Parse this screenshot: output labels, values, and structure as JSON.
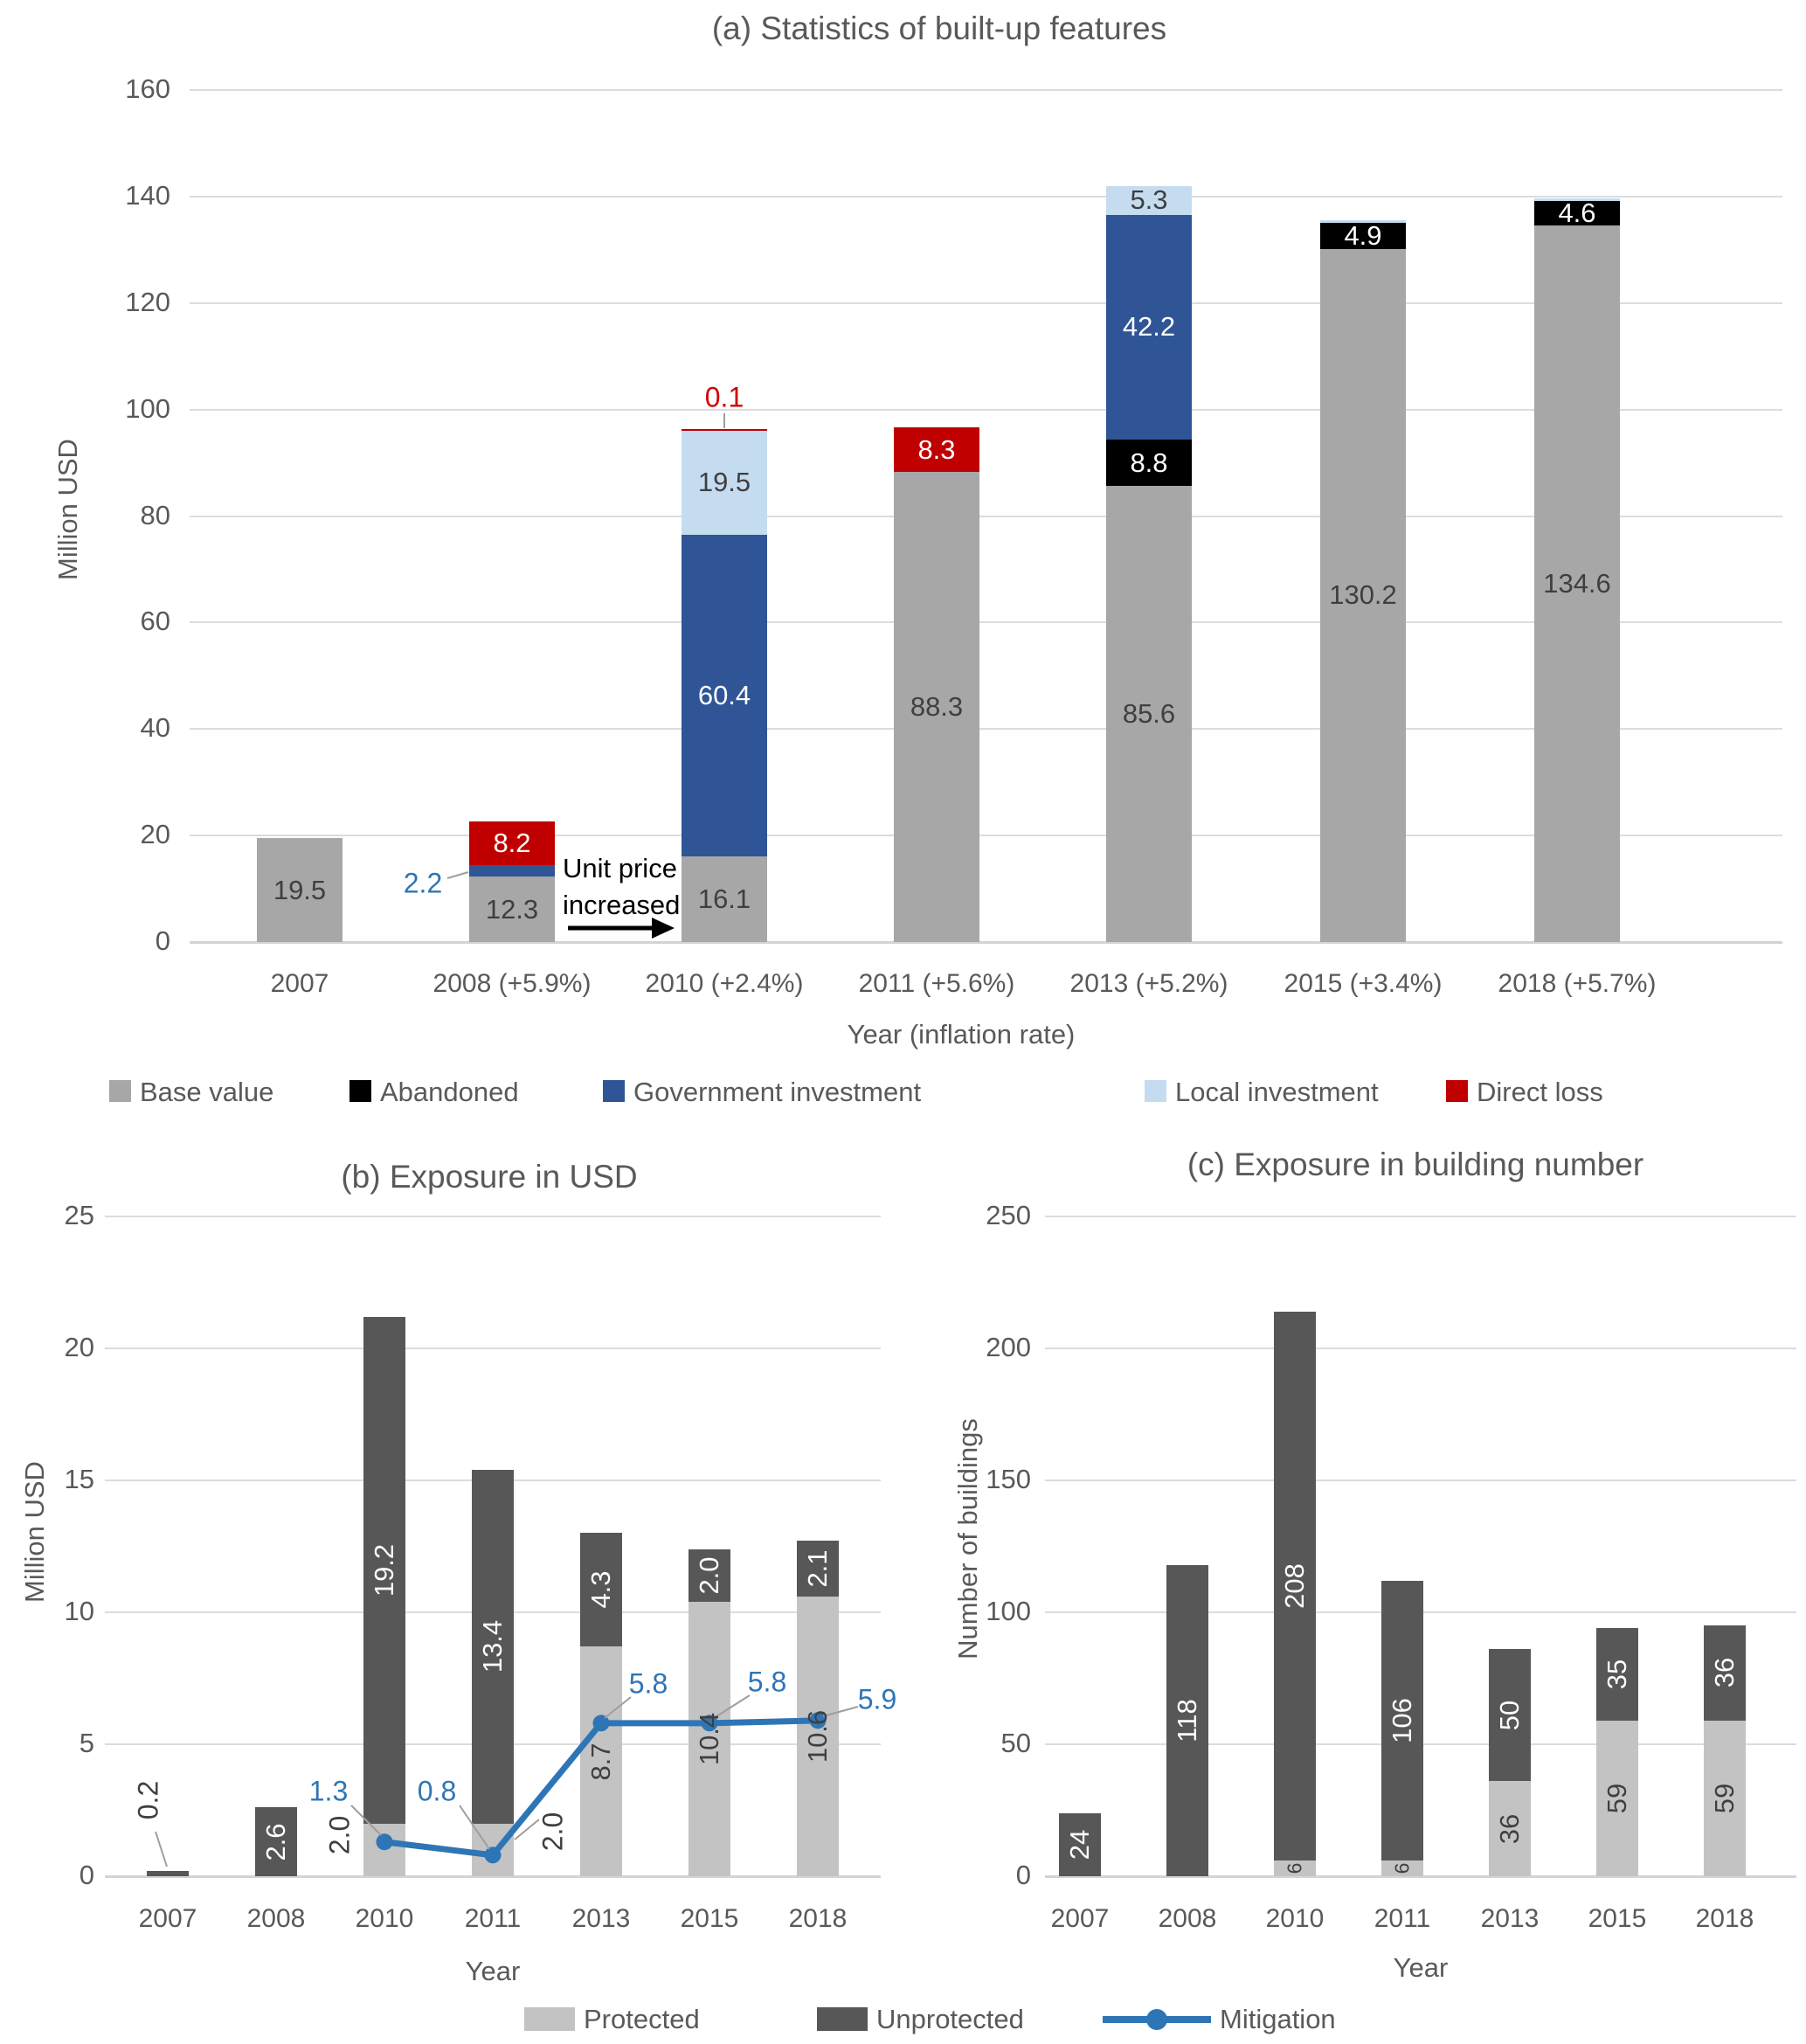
{
  "figure": {
    "background": "#FFFFFF"
  },
  "palette": {
    "base_value": "#A7A7A7",
    "abandoned": "#000000",
    "government_investment": "#2F5597",
    "local_investment": "#C5DCF0",
    "direct_loss": "#C00000",
    "protected": "#C3C3C3",
    "unprotected": "#575757",
    "mitigation": "#2E75B6",
    "text_gray": "#595959",
    "label_dark": "#3F3F3F",
    "label_white": "#FFFFFF",
    "callout_blue": "#2E75B6",
    "callout_red": "#D00000",
    "grid": "#DCDCDC",
    "leader": "#9E9E9E",
    "annotation_text": "#000000"
  },
  "chart_data": [
    {
      "id": "a",
      "type": "bar",
      "stacked": true,
      "title": "(a) Statistics of built-up features",
      "xlabel": "Year (inflation rate)",
      "ylabel": "Million USD",
      "ylim": [
        0,
        160
      ],
      "yticks": [
        0,
        20,
        40,
        60,
        80,
        100,
        120,
        140,
        160
      ],
      "grid": true,
      "legend_position": "bottom",
      "categories": [
        "2007",
        "2008 (+5.9%)",
        "2010 (+2.4%)",
        "2011 (+5.6%)",
        "2013 (+5.2%)",
        "2015 (+3.4%)",
        "2018 (+5.7%)"
      ],
      "series": [
        {
          "name": "Base value",
          "values": [
            19.5,
            12.3,
            16.1,
            88.3,
            85.6,
            130.2,
            134.6
          ]
        },
        {
          "name": "Abandoned",
          "values": [
            0,
            0,
            0,
            0,
            8.8,
            4.9,
            4.6
          ]
        },
        {
          "name": "Government investment",
          "values": [
            0,
            2.2,
            60.4,
            0,
            42.2,
            0,
            0
          ]
        },
        {
          "name": "Local investment",
          "values": [
            0,
            0,
            19.5,
            0,
            5.3,
            0,
            0
          ]
        },
        {
          "name": "Direct loss",
          "values": [
            0,
            8.2,
            0.1,
            8.3,
            0,
            0,
            0
          ]
        }
      ],
      "annotation": {
        "line1": "Unit price",
        "line2": "increased",
        "arrow": "right"
      },
      "unlabeled_thin_local_investment_caps_on": [
        "2015 (+3.4%)",
        "2018 (+5.7%)"
      ]
    },
    {
      "id": "b",
      "type": "bar+line",
      "stacked": true,
      "title": "(b) Exposure in USD",
      "xlabel": "Year",
      "ylabel": "Million USD",
      "ylim": [
        0,
        25
      ],
      "yticks": [
        0,
        5,
        10,
        15,
        20,
        25
      ],
      "grid": true,
      "categories": [
        "2007",
        "2008",
        "2010",
        "2011",
        "2013",
        "2015",
        "2018"
      ],
      "series": [
        {
          "name": "Protected",
          "values": [
            0,
            0,
            2.0,
            2.0,
            8.7,
            10.4,
            10.6
          ]
        },
        {
          "name": "Unprotected",
          "values": [
            0.2,
            2.6,
            19.2,
            13.4,
            4.3,
            2.0,
            2.1
          ]
        }
      ],
      "line_series": {
        "name": "Mitigation",
        "values": [
          null,
          null,
          1.3,
          0.8,
          5.8,
          5.8,
          5.9
        ]
      }
    },
    {
      "id": "c",
      "type": "bar",
      "stacked": true,
      "title": "(c) Exposure in building number",
      "xlabel": "Year",
      "ylabel": "Number of buildings",
      "ylim": [
        0,
        250
      ],
      "yticks": [
        0,
        50,
        100,
        150,
        200,
        250
      ],
      "grid": true,
      "categories": [
        "2007",
        "2008",
        "2010",
        "2011",
        "2013",
        "2015",
        "2018"
      ],
      "series": [
        {
          "name": "Protected",
          "values": [
            0,
            0,
            6,
            6,
            36,
            59,
            59
          ]
        },
        {
          "name": "Unprotected",
          "values": [
            24,
            118,
            208,
            106,
            50,
            35,
            36
          ]
        }
      ]
    }
  ],
  "legend_bottom": {
    "items": [
      "Protected",
      "Unprotected",
      "Mitigation"
    ]
  }
}
